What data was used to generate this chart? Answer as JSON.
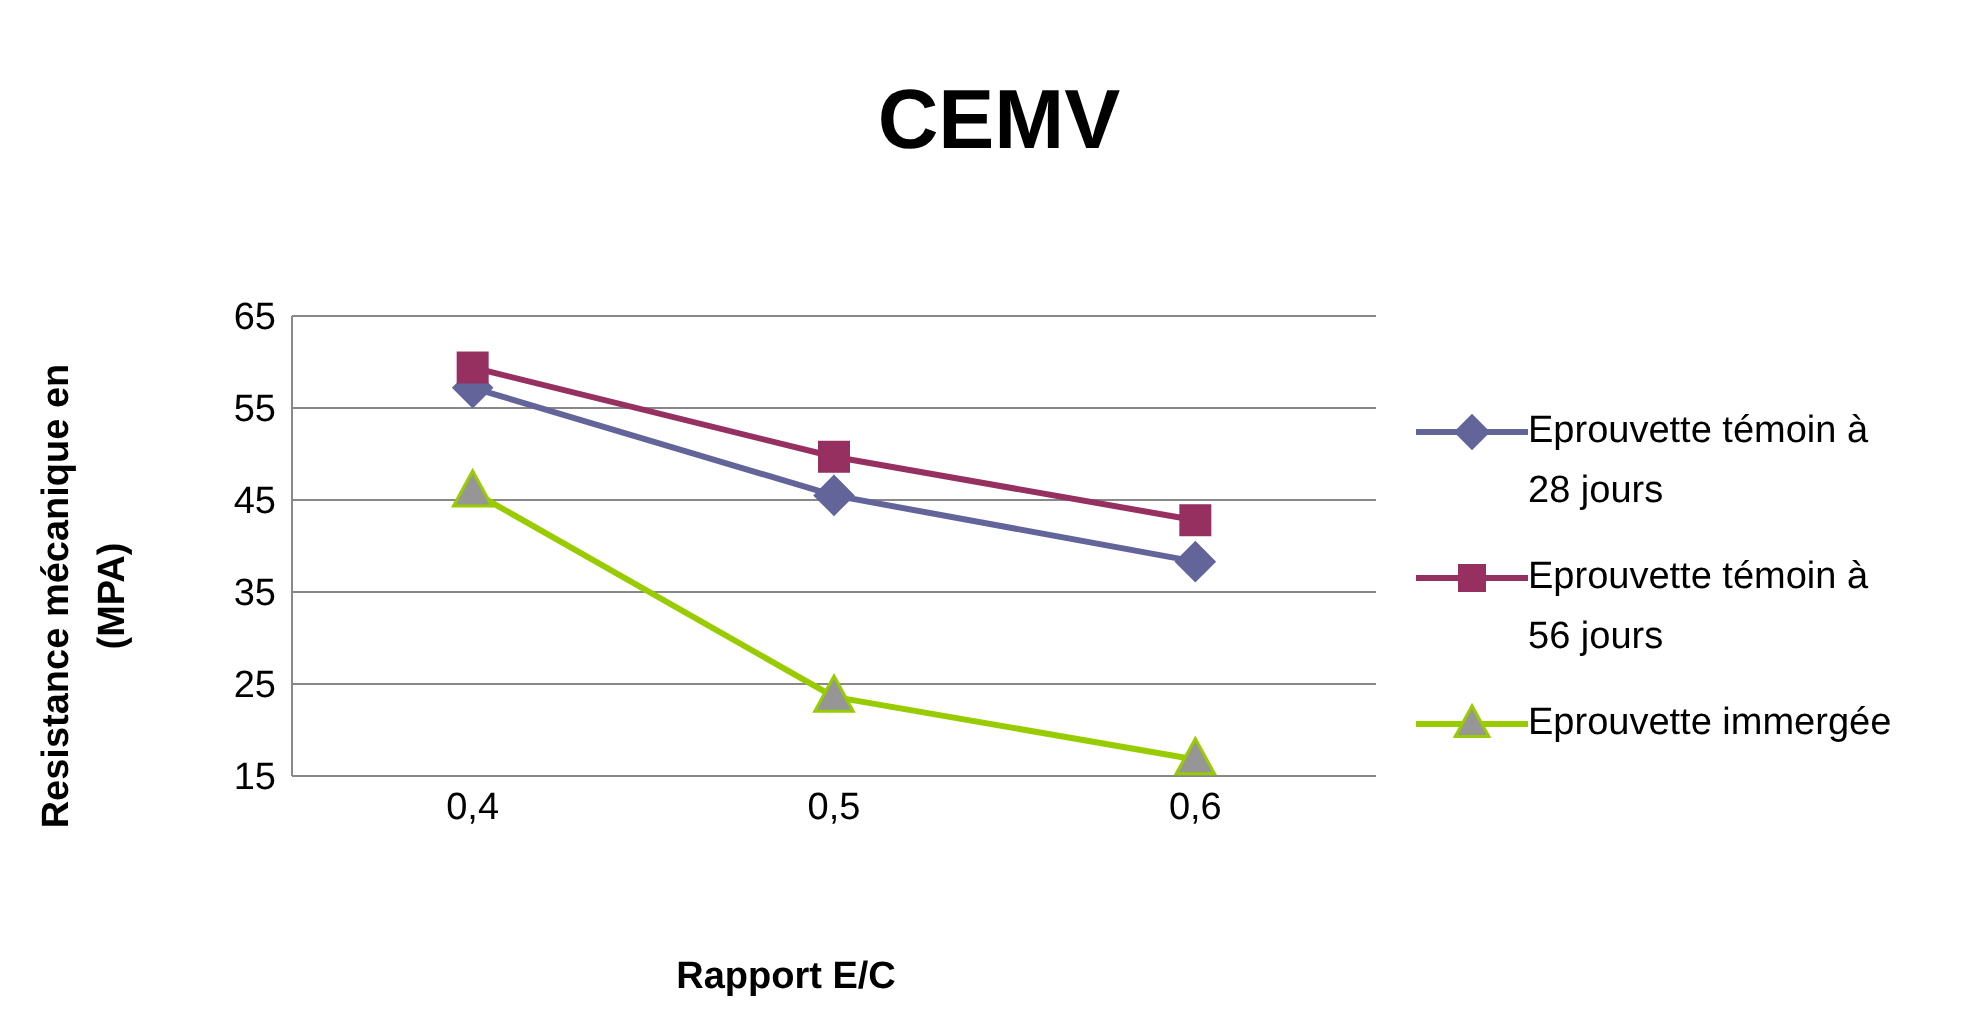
{
  "chart_data": {
    "type": "line",
    "title": "CEMV",
    "xlabel": "Rapport E/C",
    "ylabel": "Resistance mécanique en (MPA)",
    "categories": [
      "0,4",
      "0,5",
      "0,6"
    ],
    "series": [
      {
        "name": "Eprouvette témoin à 28 jours",
        "color": "#636499",
        "marker": "diamond",
        "values": [
          57.2,
          45.5,
          38.3
        ]
      },
      {
        "name": "Eprouvette témoin à 56 jours",
        "color": "#953060",
        "marker": "square",
        "values": [
          59.4,
          49.7,
          42.8
        ]
      },
      {
        "name": "Eprouvette immergée",
        "color": "#99cc00",
        "marker": "triangle",
        "values": [
          45.9,
          23.6,
          16.8
        ]
      }
    ],
    "ylim": [
      15,
      65
    ],
    "yticks": [
      15,
      25,
      35,
      45,
      55,
      65
    ],
    "grid": "y",
    "legend": "right"
  }
}
